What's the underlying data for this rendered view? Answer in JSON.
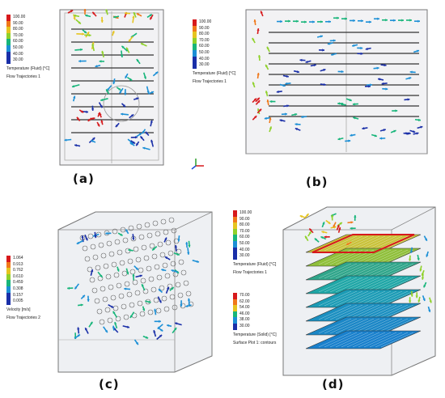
{
  "captions": {
    "a": "(a)",
    "b": "(b)",
    "c": "(c)",
    "d": "(d)"
  },
  "colorscale": [
    "#d7191c",
    "#f0781a",
    "#e6c41f",
    "#8fd12a",
    "#17b57a",
    "#1b8fd6",
    "#1a2fa8"
  ],
  "panel_a": {
    "legend_ticks": [
      "100.00",
      "90.00",
      "80.00",
      "70.00",
      "60.00",
      "50.00",
      "40.00",
      "30.00"
    ],
    "legend_title": "Temperature (Fluid) [°C]",
    "trajectory_label": "Flow Trajectories 1"
  },
  "panel_b": {
    "legend_ticks": [
      "100.00",
      "90.00",
      "80.00",
      "70.00",
      "60.00",
      "50.00",
      "40.00",
      "30.00"
    ],
    "legend_title": "Temperature (Fluid) [°C]",
    "trajectory_label": "Flow Trajectories 1"
  },
  "panel_c": {
    "legend_ticks": [
      "1.064",
      "0.913",
      "0.762",
      "0.610",
      "0.459",
      "0.308",
      "0.157",
      "0.005"
    ],
    "legend_title": "Velocity [m/s]",
    "trajectory_label": "Flow Trajectories 2"
  },
  "panel_d": {
    "legend_ticks": [
      "100.00",
      "90.00",
      "80.00",
      "70.00",
      "60.00",
      "50.00",
      "40.00",
      "30.00"
    ],
    "legend_title": "Temperature (Fluid) [°C]",
    "trajectory_label": "Flow Trajectories 1",
    "solid_ticks": [
      "70.00",
      "62.00",
      "54.00",
      "46.00",
      "38.00",
      "30.00"
    ],
    "solid_title": "Temperature (Solid) [°C]",
    "surface_label": "Surface Plot 1: contours"
  }
}
